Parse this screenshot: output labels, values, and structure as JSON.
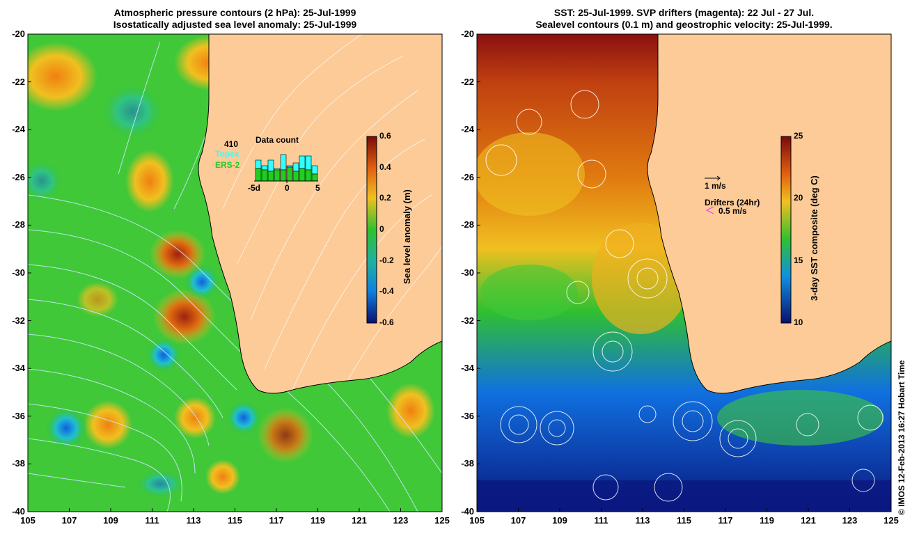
{
  "left_panel": {
    "title_line1": "Atmospheric pressure contours (2 hPa): 25-Jul-1999",
    "title_line2": "Isostatically adjusted sea level anomaly: 25-Jul-1999",
    "colorbar": {
      "label": "Sea level anomaly (m)",
      "ticks": [
        "0.6",
        "0.4",
        "0.2",
        "0",
        "-0.2",
        "-0.4",
        "-0.6"
      ]
    },
    "inset": {
      "title": "Data count",
      "count": "410",
      "legend_topex": "Topex",
      "legend_ers2": "ERS-2",
      "x_ticks": [
        "-5d",
        "0",
        "5"
      ],
      "topex_color": "#33ffff",
      "ers2_color": "#22cc22"
    }
  },
  "right_panel": {
    "title_line1": "SST: 25-Jul-1999. SVP drifters (magenta): 22 Jul - 27 Jul.",
    "title_line2": "Sealevel contours (0.1 m) and geostrophic velocity: 25-Jul-1999.",
    "colorbar": {
      "label": "3-day SST composite (deg C)",
      "ticks": [
        "25",
        "20",
        "15",
        "10"
      ]
    },
    "vel_scale_label": "1 m/s",
    "drifter_title": "Drifters (24hr)",
    "drifter_scale_label": "0.5 m/s",
    "drifter_color": "#ff33ff"
  },
  "axes": {
    "y_ticks": [
      "-20",
      "-22",
      "-24",
      "-26",
      "-28",
      "-30",
      "-32",
      "-34",
      "-36",
      "-38",
      "-40"
    ],
    "x_ticks": [
      "105",
      "107",
      "109",
      "111",
      "113",
      "115",
      "117",
      "119",
      "121",
      "123",
      "125"
    ]
  },
  "credit": "© IMOS 12-Feb-2013 16:27 Hobart Time",
  "colors": {
    "land": "#fccb98",
    "ocean_green": "#33cc33",
    "sst_warm": "#e07010",
    "sst_cold": "#1060d0"
  }
}
